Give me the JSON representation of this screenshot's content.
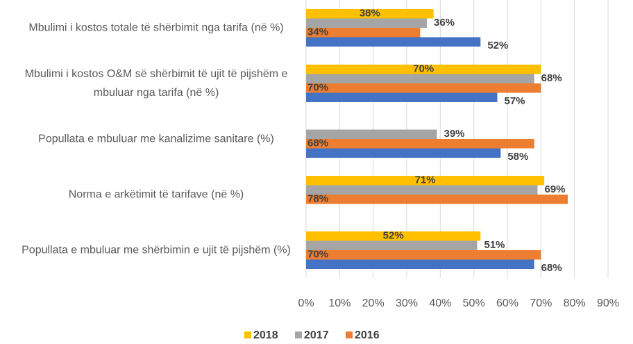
{
  "chart_data": {
    "type": "hbar",
    "categories": [
      "Mbulimi i kostos totale të shërbimit nga tarifa (në %)",
      "Mbulimi i kostos O&M së shërbimit të ujit të pijshëm e mbuluar nga tarifa (në %)",
      "Popullata e mbuluar me kanalizime sanitare (%)",
      "Norma e arkëtimit të tarifave (në %)",
      "Popullata e mbuluar me shërbimin e ujit të pijshëm (%)"
    ],
    "series": [
      {
        "name": "2018",
        "color": "#ffc000",
        "values": [
          38,
          70,
          null,
          71,
          52
        ],
        "value_labels": [
          "38%",
          "70%",
          null,
          "71%",
          "52%"
        ]
      },
      {
        "name": "2017",
        "color": "#a5a5a5",
        "values": [
          36,
          68,
          39,
          69,
          51
        ],
        "value_labels": [
          "36%",
          "68%",
          "39%",
          "69%",
          "51%"
        ]
      },
      {
        "name": "2016",
        "color": "#ed7d31",
        "values": [
          34,
          70,
          68,
          78,
          70
        ],
        "value_labels": [
          "34%",
          "70%",
          "68%",
          "78%",
          "70%"
        ]
      },
      {
        "color": "#4472c4",
        "values": [
          52,
          57,
          58,
          null,
          68
        ],
        "value_labels": [
          "52%",
          "57%",
          "58%",
          null,
          "68%"
        ]
      }
    ],
    "xlim": [
      0,
      90
    ],
    "xticks": [
      {
        "value": 0,
        "label": "0%"
      },
      {
        "value": 10,
        "label": "10%"
      },
      {
        "value": 20,
        "label": "20%"
      },
      {
        "value": 30,
        "label": "30%"
      },
      {
        "value": 40,
        "label": "40%"
      },
      {
        "value": 50,
        "label": "50%"
      },
      {
        "value": 60,
        "label": "60%"
      },
      {
        "value": 70,
        "label": "70%"
      },
      {
        "value": 80,
        "label": "80%"
      },
      {
        "value": 90,
        "label": "90%"
      }
    ],
    "grid": true,
    "legend": "bottom"
  }
}
